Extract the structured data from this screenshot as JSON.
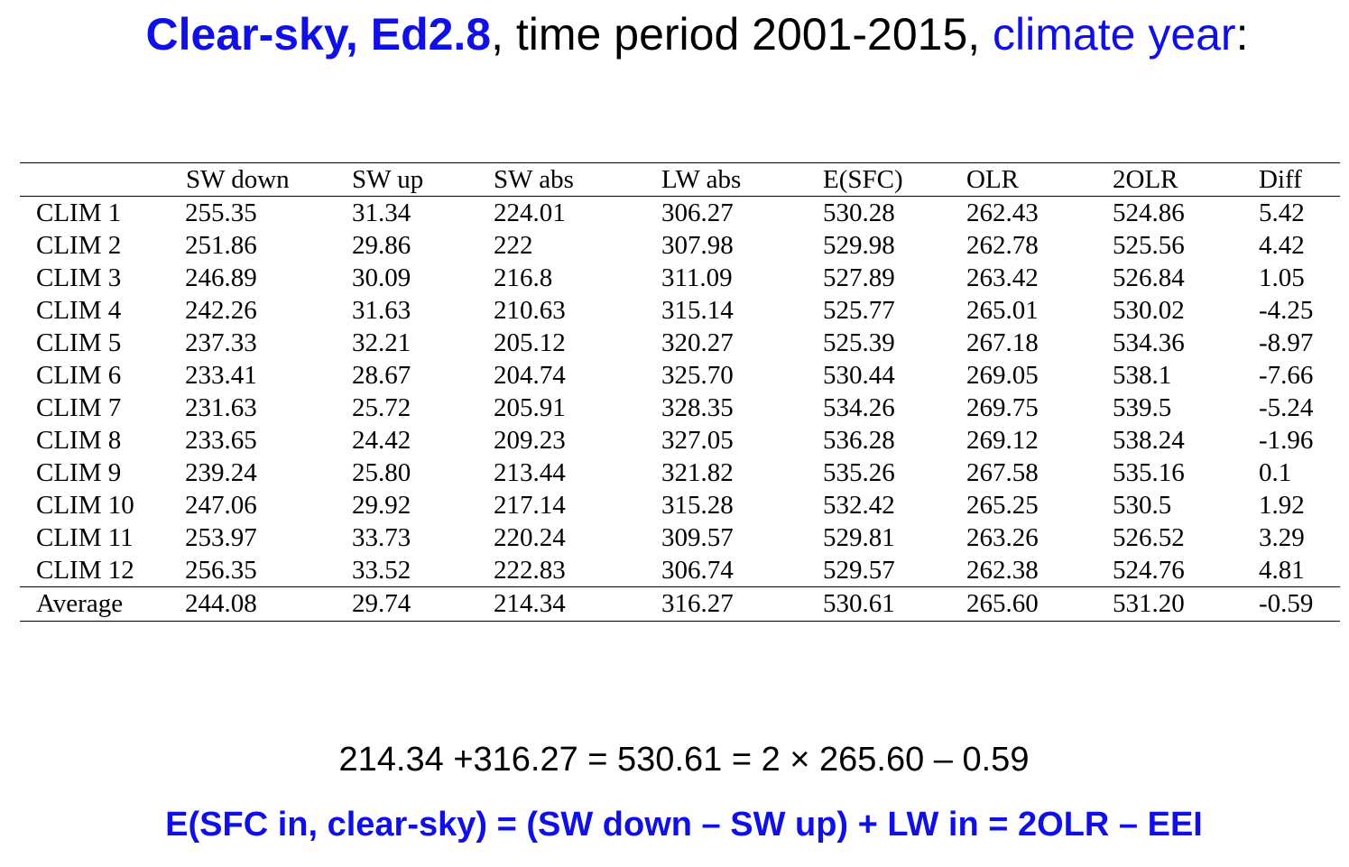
{
  "title": {
    "part1": "Clear-sky, Ed2.8",
    "part2": ", time period 2001-2015, ",
    "part3": "climate year",
    "part4": ":"
  },
  "table": {
    "headers": [
      "",
      "SW down",
      "SW up",
      "SW abs",
      "LW abs",
      "E(SFC)",
      "OLR",
      "2OLR",
      "Diff"
    ],
    "rows": [
      [
        "CLIM 1",
        "255.35",
        "31.34",
        "224.01",
        "306.27",
        "530.28",
        "262.43",
        "524.86",
        "5.42"
      ],
      [
        "CLIM 2",
        "251.86",
        "29.86",
        "222",
        "307.98",
        "529.98",
        "262.78",
        "525.56",
        "4.42"
      ],
      [
        "CLIM 3",
        "246.89",
        "30.09",
        "216.8",
        "311.09",
        "527.89",
        "263.42",
        "526.84",
        "1.05"
      ],
      [
        "CLIM 4",
        "242.26",
        "31.63",
        "210.63",
        "315.14",
        "525.77",
        "265.01",
        "530.02",
        "-4.25"
      ],
      [
        "CLIM 5",
        "237.33",
        "32.21",
        "205.12",
        "320.27",
        "525.39",
        "267.18",
        "534.36",
        "-8.97"
      ],
      [
        "CLIM 6",
        "233.41",
        "28.67",
        "204.74",
        "325.70",
        "530.44",
        "269.05",
        "538.1",
        "-7.66"
      ],
      [
        "CLIM 7",
        "231.63",
        "25.72",
        "205.91",
        "328.35",
        "534.26",
        "269.75",
        "539.5",
        "-5.24"
      ],
      [
        "CLIM 8",
        "233.65",
        "24.42",
        "209.23",
        "327.05",
        "536.28",
        "269.12",
        "538.24",
        "-1.96"
      ],
      [
        "CLIM 9",
        "239.24",
        "25.80",
        "213.44",
        "321.82",
        "535.26",
        "267.58",
        "535.16",
        "0.1"
      ],
      [
        "CLIM 10",
        "247.06",
        "29.92",
        "217.14",
        "315.28",
        "532.42",
        "265.25",
        "530.5",
        "1.92"
      ],
      [
        "CLIM 11",
        "253.97",
        "33.73",
        "220.24",
        "309.57",
        "529.81",
        "263.26",
        "526.52",
        "3.29"
      ],
      [
        "CLIM 12",
        "256.35",
        "33.52",
        "222.83",
        "306.74",
        "529.57",
        "262.38",
        "524.76",
        "4.81"
      ]
    ],
    "average": [
      "Average",
      "244.08",
      "29.74",
      "214.34",
      "316.27",
      "530.61",
      "265.60",
      "531.20",
      "-0.59"
    ]
  },
  "formula": "214.34 +316.27 = 530.61 = 2 × 265.60 – 0.59",
  "equation": "E(SFC in, clear-sky) = (SW down – SW up) + LW in = 2OLR – EEI"
}
